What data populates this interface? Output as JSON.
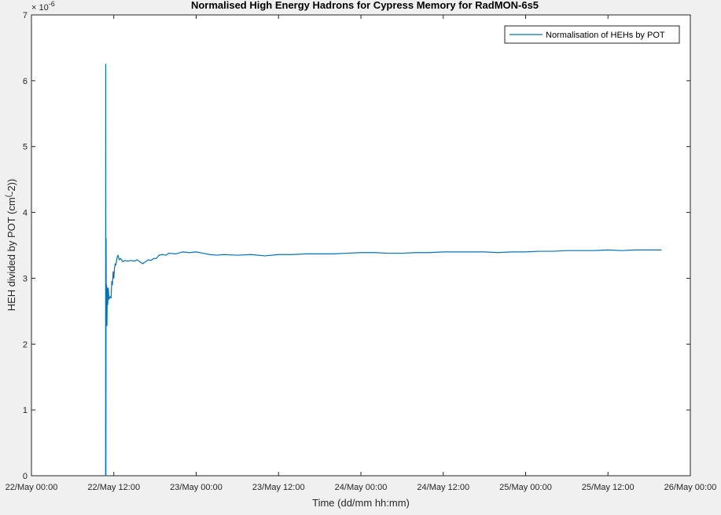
{
  "chart_data": {
    "type": "line",
    "title": "Normalised High Energy Hadrons for Cypress Memory for RadMON-6s5",
    "xlabel": "Time (dd/mm hh:mm)",
    "ylabel_main": "HEH divided by POT (cm",
    "ylabel_sup": "(",
    "ylabel_rest": "-2))",
    "y_exponent_base": "× 10",
    "y_exponent_power": "-6",
    "x_range_hours": [
      0,
      96
    ],
    "x_tick_hours": [
      0,
      12,
      24,
      36,
      48,
      60,
      72,
      84,
      96
    ],
    "x_tick_labels": [
      "22/May 00:00",
      "22/May 12:00",
      "23/May 00:00",
      "23/May 12:00",
      "24/May 00:00",
      "24/May 12:00",
      "25/May 00:00",
      "25/May 12:00",
      "26/May 00:00"
    ],
    "ylim": [
      0,
      7
    ],
    "y_ticks": [
      0,
      1,
      2,
      3,
      4,
      5,
      6,
      7
    ],
    "y_tick_labels": [
      "0",
      "1",
      "2",
      "3",
      "4",
      "5",
      "6",
      "7"
    ],
    "legend": {
      "position": "top-right",
      "entries": [
        "Normalisation of HEHs by POT"
      ]
    },
    "grid": false,
    "series": [
      {
        "name": "Normalisation of HEHs by POT",
        "color": "#0072bd",
        "points": [
          [
            10.8,
            0.0
          ],
          [
            10.82,
            6.25
          ],
          [
            10.85,
            0.0
          ],
          [
            10.88,
            3.6
          ],
          [
            10.9,
            2.4
          ],
          [
            10.95,
            2.9
          ],
          [
            11.0,
            2.28
          ],
          [
            11.05,
            2.85
          ],
          [
            11.12,
            2.6
          ],
          [
            11.2,
            2.85
          ],
          [
            11.3,
            2.68
          ],
          [
            11.45,
            2.72
          ],
          [
            11.6,
            2.7
          ],
          [
            11.7,
            2.95
          ],
          [
            11.8,
            2.9
          ],
          [
            11.9,
            3.1
          ],
          [
            12.0,
            3.0
          ],
          [
            12.1,
            3.15
          ],
          [
            12.2,
            3.22
          ],
          [
            12.3,
            3.2
          ],
          [
            12.45,
            3.3
          ],
          [
            12.6,
            3.35
          ],
          [
            12.8,
            3.28
          ],
          [
            13.0,
            3.3
          ],
          [
            13.3,
            3.25
          ],
          [
            13.6,
            3.27
          ],
          [
            14.0,
            3.26
          ],
          [
            14.5,
            3.27
          ],
          [
            15.0,
            3.26
          ],
          [
            15.4,
            3.28
          ],
          [
            15.8,
            3.25
          ],
          [
            16.2,
            3.22
          ],
          [
            16.6,
            3.25
          ],
          [
            17.0,
            3.28
          ],
          [
            17.4,
            3.27
          ],
          [
            17.8,
            3.3
          ],
          [
            18.2,
            3.3
          ],
          [
            18.6,
            3.35
          ],
          [
            19.0,
            3.36
          ],
          [
            19.6,
            3.35
          ],
          [
            20.0,
            3.38
          ],
          [
            21.0,
            3.37
          ],
          [
            22.0,
            3.4
          ],
          [
            23.0,
            3.39
          ],
          [
            24.0,
            3.4
          ],
          [
            25.0,
            3.38
          ],
          [
            26.0,
            3.36
          ],
          [
            27.0,
            3.35
          ],
          [
            28.0,
            3.36
          ],
          [
            30.0,
            3.35
          ],
          [
            32.0,
            3.36
          ],
          [
            34.0,
            3.34
          ],
          [
            36.0,
            3.36
          ],
          [
            38.0,
            3.36
          ],
          [
            40.0,
            3.37
          ],
          [
            42.0,
            3.37
          ],
          [
            44.0,
            3.37
          ],
          [
            46.0,
            3.38
          ],
          [
            48.0,
            3.39
          ],
          [
            50.0,
            3.39
          ],
          [
            52.0,
            3.38
          ],
          [
            54.0,
            3.38
          ],
          [
            56.0,
            3.39
          ],
          [
            58.0,
            3.39
          ],
          [
            60.0,
            3.4
          ],
          [
            62.0,
            3.4
          ],
          [
            64.0,
            3.4
          ],
          [
            66.0,
            3.4
          ],
          [
            68.0,
            3.39
          ],
          [
            70.0,
            3.4
          ],
          [
            72.0,
            3.4
          ],
          [
            74.0,
            3.41
          ],
          [
            76.0,
            3.41
          ],
          [
            78.0,
            3.42
          ],
          [
            80.0,
            3.42
          ],
          [
            82.0,
            3.42
          ],
          [
            84.0,
            3.43
          ],
          [
            86.0,
            3.42
          ],
          [
            88.0,
            3.43
          ],
          [
            90.0,
            3.43
          ],
          [
            91.8,
            3.43
          ]
        ]
      }
    ]
  }
}
